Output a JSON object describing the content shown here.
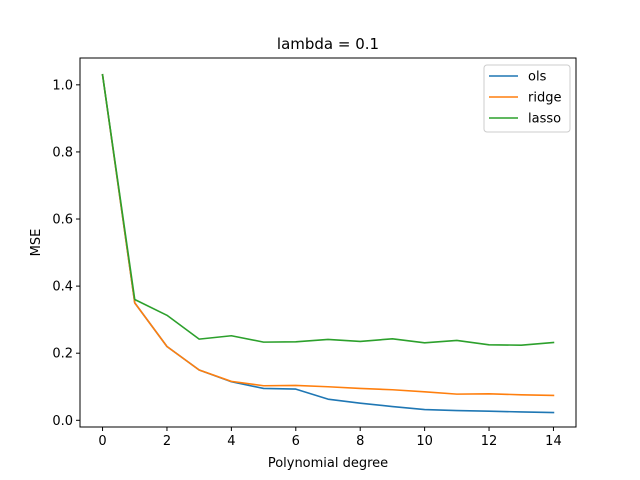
{
  "chart_data": {
    "type": "line",
    "title": "lambda = 0.1",
    "xlabel": "Polynomial degree",
    "ylabel": "MSE",
    "x": [
      0,
      1,
      2,
      3,
      4,
      5,
      6,
      7,
      8,
      9,
      10,
      11,
      12,
      13,
      14
    ],
    "xlim": [
      -0.7,
      14.7
    ],
    "ylim": [
      -0.02,
      1.08
    ],
    "xticks": [
      "0",
      "2",
      "4",
      "6",
      "8",
      "10",
      "12",
      "14"
    ],
    "yticks": [
      "0.0",
      "0.2",
      "0.4",
      "0.6",
      "0.8",
      "1.0"
    ],
    "grid": false,
    "legend_position": "top-right",
    "series": [
      {
        "name": "ols",
        "color": "#1f77b4",
        "values": [
          1.03,
          0.35,
          0.22,
          0.15,
          0.115,
          0.095,
          0.093,
          0.063,
          0.051,
          0.041,
          0.032,
          0.029,
          0.027,
          0.025,
          0.023
        ]
      },
      {
        "name": "ridge",
        "color": "#ff7f0e",
        "values": [
          1.03,
          0.35,
          0.22,
          0.15,
          0.116,
          0.103,
          0.104,
          0.1,
          0.095,
          0.091,
          0.085,
          0.078,
          0.079,
          0.076,
          0.074
        ]
      },
      {
        "name": "lasso",
        "color": "#2ca02c",
        "values": [
          1.03,
          0.36,
          0.313,
          0.242,
          0.252,
          0.233,
          0.234,
          0.241,
          0.235,
          0.243,
          0.231,
          0.238,
          0.225,
          0.224,
          0.232
        ]
      }
    ]
  }
}
